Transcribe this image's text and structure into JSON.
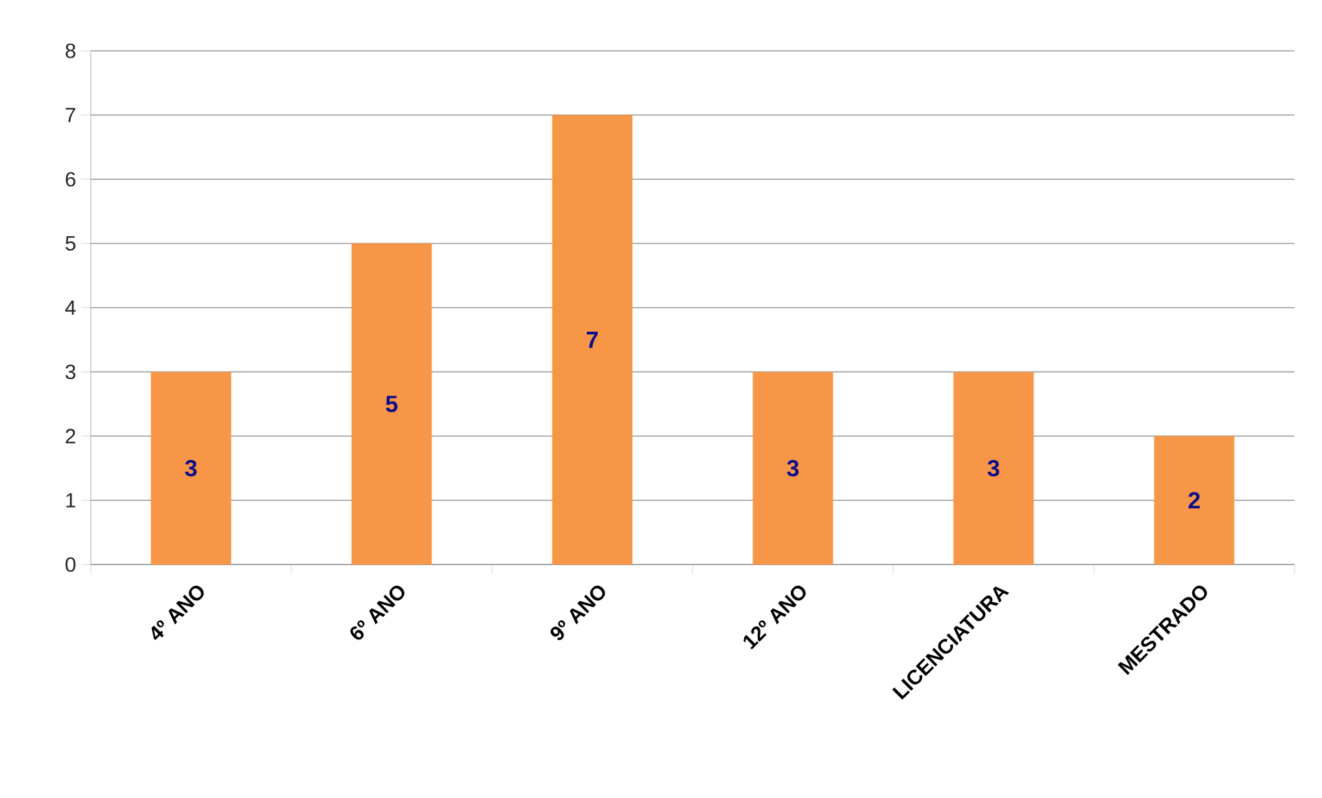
{
  "chart_data": {
    "type": "bar",
    "categories": [
      "4º ANO",
      "6º ANO",
      "9º ANO",
      "12º ANO",
      "LICENCIATURA",
      "MESTRADO"
    ],
    "values": [
      3,
      5,
      7,
      3,
      3,
      2
    ],
    "value_labels": [
      "3",
      "5",
      "7",
      "3",
      "3",
      "2"
    ],
    "color": "#f79646",
    "ylim": [
      0,
      8
    ],
    "yticks": [
      0,
      1,
      2,
      3,
      4,
      5,
      6,
      7,
      8
    ],
    "grid": "y"
  }
}
